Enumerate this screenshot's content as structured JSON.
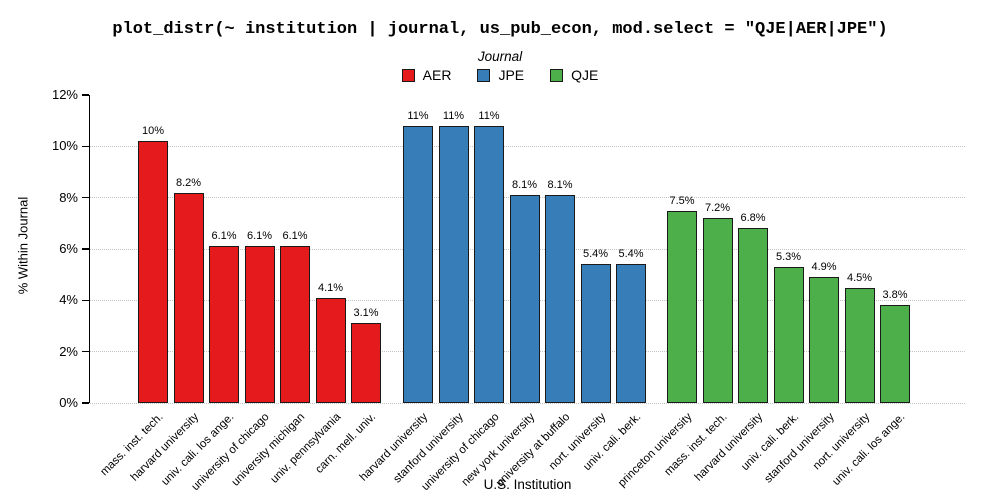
{
  "title": "plot_distr(~ institution | journal, us_pub_econ, mod.select = \"QJE|AER|JPE\")",
  "legend": {
    "title": "Journal",
    "entries": [
      {
        "label": "AER",
        "color": "#E41A1C"
      },
      {
        "label": "JPE",
        "color": "#377EB8"
      },
      {
        "label": "QJE",
        "color": "#4DAF4A"
      }
    ]
  },
  "chart_data": {
    "type": "bar",
    "title": "plot_distr(~ institution | journal, us_pub_econ, mod.select = \"QJE|AER|JPE\")",
    "xlabel": "U.S. Institution",
    "ylabel": "% Within Journal",
    "ylim": [
      0,
      12
    ],
    "grid": "horizontal-dotted",
    "grid_values": [
      0,
      2,
      4,
      6,
      8,
      10
    ],
    "legend_position": "top-center",
    "yticks": [
      {
        "value": 0,
        "label": "0%"
      },
      {
        "value": 2,
        "label": "2%"
      },
      {
        "value": 4,
        "label": "4%"
      },
      {
        "value": 6,
        "label": "6%"
      },
      {
        "value": 8,
        "label": "8%"
      },
      {
        "value": 10,
        "label": "10%"
      },
      {
        "value": 12,
        "label": "12%"
      }
    ],
    "groups": [
      {
        "journal": "AER",
        "color": "#E41A1C",
        "bars": [
          {
            "institution": "mass. inst. tech.",
            "value": 10.2,
            "label": "10%"
          },
          {
            "institution": "harvard university",
            "value": 8.2,
            "label": "8.2%"
          },
          {
            "institution": "univ. cali. los ange.",
            "value": 6.1,
            "label": "6.1%"
          },
          {
            "institution": "university of chicago",
            "value": 6.1,
            "label": "6.1%"
          },
          {
            "institution": "university michigan",
            "value": 6.1,
            "label": "6.1%"
          },
          {
            "institution": "univ. pennsylvania",
            "value": 4.1,
            "label": "4.1%"
          },
          {
            "institution": "carn. mell. univ.",
            "value": 3.1,
            "label": "3.1%"
          }
        ]
      },
      {
        "journal": "JPE",
        "color": "#377EB8",
        "bars": [
          {
            "institution": "harvard university",
            "value": 10.8,
            "label": "11%"
          },
          {
            "institution": "stanford university",
            "value": 10.8,
            "label": "11%"
          },
          {
            "institution": "university of chicago",
            "value": 10.8,
            "label": "11%"
          },
          {
            "institution": "new york university",
            "value": 8.1,
            "label": "8.1%"
          },
          {
            "institution": "university at buffalo",
            "value": 8.1,
            "label": "8.1%"
          },
          {
            "institution": "nort. university",
            "value": 5.4,
            "label": "5.4%"
          },
          {
            "institution": "univ. cali. berk.",
            "value": 5.4,
            "label": "5.4%"
          }
        ]
      },
      {
        "journal": "QJE",
        "color": "#4DAF4A",
        "bars": [
          {
            "institution": "princeton university",
            "value": 7.5,
            "label": "7.5%"
          },
          {
            "institution": "mass. inst. tech.",
            "value": 7.2,
            "label": "7.2%"
          },
          {
            "institution": "harvard university",
            "value": 6.8,
            "label": "6.8%"
          },
          {
            "institution": "univ. cali. berk.",
            "value": 5.3,
            "label": "5.3%"
          },
          {
            "institution": "stanford university",
            "value": 4.9,
            "label": "4.9%"
          },
          {
            "institution": "nort. university",
            "value": 4.5,
            "label": "4.5%"
          },
          {
            "institution": "univ. cali. los ange.",
            "value": 3.8,
            "label": "3.8%"
          }
        ]
      }
    ]
  }
}
